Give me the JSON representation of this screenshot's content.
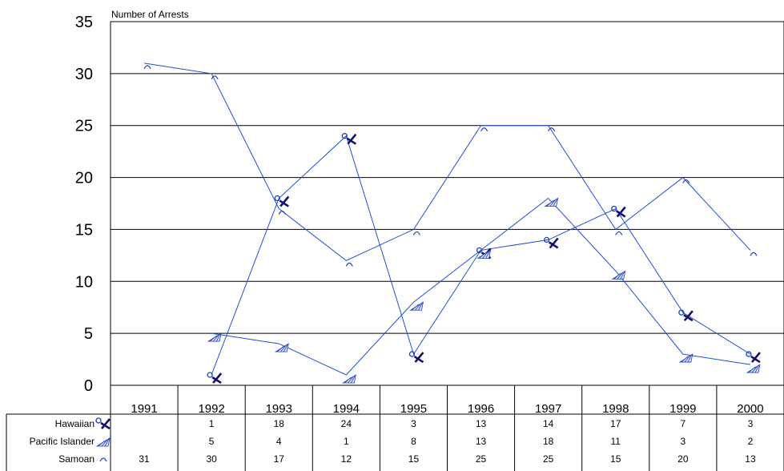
{
  "chart_data": {
    "type": "line",
    "ylabel": "Number of Arrests",
    "ylim": [
      0,
      35
    ],
    "yticks": [
      0,
      5,
      10,
      15,
      20,
      25,
      30,
      35
    ],
    "grid": true,
    "legend": "data-table-below",
    "categories": [
      "1991",
      "1992",
      "1993",
      "1994",
      "1995",
      "1996",
      "1997",
      "1998",
      "1999",
      "2000"
    ],
    "series": [
      {
        "name": "Hawaiian",
        "values": [
          null,
          1,
          18,
          24,
          3,
          13,
          14,
          17,
          7,
          3
        ],
        "color": "#1f4fd6",
        "marker": "hawaiian"
      },
      {
        "name": "Pacific Islander",
        "values": [
          null,
          5,
          4,
          1,
          8,
          13,
          18,
          11,
          3,
          2
        ],
        "color": "#1f4fd6",
        "marker": "pacific"
      },
      {
        "name": "Samoan",
        "values": [
          31,
          30,
          17,
          12,
          15,
          25,
          25,
          15,
          20,
          13
        ],
        "color": "#1f4fd6",
        "marker": "samoan"
      }
    ],
    "table": {
      "rows": [
        [
          "",
          "1",
          "18",
          "24",
          "3",
          "13",
          "14",
          "17",
          "7",
          "3"
        ],
        [
          "",
          "5",
          "4",
          "1",
          "8",
          "13",
          "18",
          "11",
          "3",
          "2"
        ],
        [
          "31",
          "30",
          "17",
          "12",
          "15",
          "25",
          "25",
          "15",
          "20",
          "13"
        ]
      ]
    }
  }
}
